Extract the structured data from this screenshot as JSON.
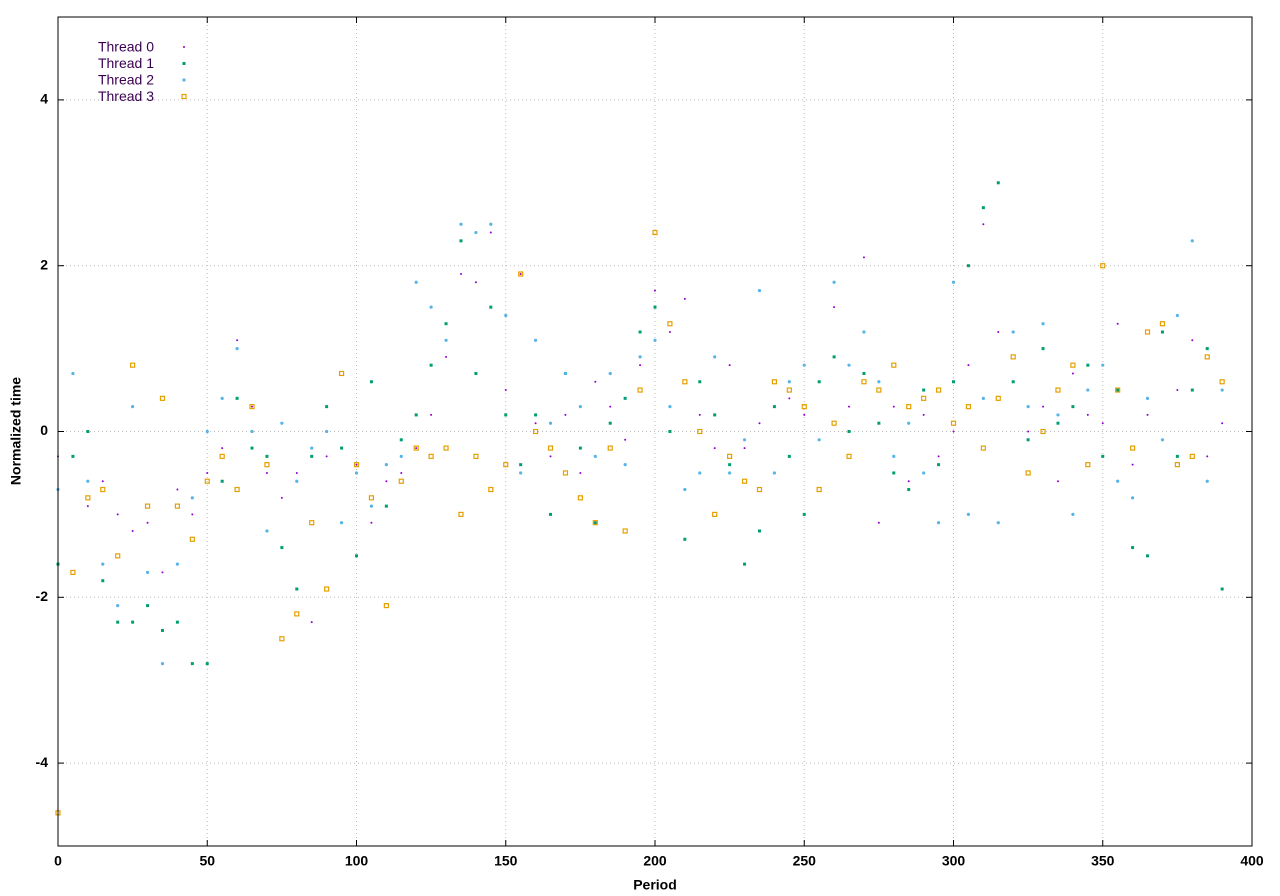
{
  "chart_data": {
    "type": "scatter",
    "xlabel": "Period",
    "ylabel": "Normalized time",
    "xlim": [
      0,
      400
    ],
    "ylim": [
      -5,
      5
    ],
    "xticks": [
      0,
      50,
      100,
      150,
      200,
      250,
      300,
      350,
      400
    ],
    "yticks": [
      -4,
      -2,
      0,
      2,
      4
    ],
    "grid": true,
    "legend": "top-left",
    "x": [
      0,
      5,
      10,
      15,
      20,
      25,
      30,
      35,
      40,
      45,
      50,
      55,
      60,
      65,
      70,
      75,
      80,
      85,
      90,
      95,
      100,
      105,
      110,
      115,
      120,
      125,
      130,
      135,
      140,
      145,
      150,
      155,
      160,
      165,
      170,
      175,
      180,
      185,
      190,
      195,
      200,
      205,
      210,
      215,
      220,
      225,
      230,
      235,
      240,
      245,
      250,
      255,
      260,
      265,
      270,
      275,
      280,
      285,
      290,
      295,
      300,
      305,
      310,
      315,
      320,
      325,
      330,
      335,
      340,
      345,
      350,
      355,
      360,
      365,
      370,
      375,
      380,
      385,
      390
    ],
    "series": [
      {
        "name": "Thread 0",
        "color": "#9400d3",
        "values": [
          -0.3,
          -0.3,
          -0.9,
          -0.6,
          -1.0,
          -1.2,
          -1.1,
          -1.7,
          -0.7,
          -1.0,
          -0.5,
          -0.2,
          1.1,
          0.3,
          -0.5,
          -0.8,
          -0.5,
          -2.3,
          -0.3,
          -0.2,
          -0.4,
          -1.1,
          -0.6,
          -0.5,
          -0.2,
          0.2,
          0.9,
          1.9,
          1.8,
          2.4,
          0.5,
          1.9,
          0.1,
          -0.3,
          0.2,
          -0.5,
          0.6,
          0.3,
          -0.1,
          0.8,
          1.7,
          1.2,
          1.6,
          0.2,
          -0.2,
          0.8,
          -0.2,
          0.1,
          -0.5,
          0.4,
          0.2,
          0.6,
          1.5,
          0.3,
          2.1,
          -1.1,
          0.3,
          -0.6,
          0.2,
          -0.3,
          0.0,
          0.8,
          2.5,
          1.2,
          0.6,
          0.0,
          0.3,
          -0.6,
          0.7,
          0.2,
          0.1,
          1.3,
          -0.4,
          0.2,
          -0.1,
          0.5,
          1.1,
          -0.3,
          0.1
        ]
      },
      {
        "name": "Thread 1",
        "color": "#009e73",
        "values": [
          -1.6,
          -0.3,
          0.0,
          -1.8,
          -2.3,
          -2.3,
          -2.1,
          -2.4,
          -2.3,
          -2.8,
          -2.8,
          -0.6,
          0.4,
          -0.2,
          -0.3,
          -1.4,
          -1.9,
          -0.3,
          0.3,
          -0.2,
          -1.5,
          0.6,
          -0.9,
          -0.1,
          0.2,
          0.8,
          1.3,
          2.3,
          0.7,
          1.5,
          0.2,
          -0.4,
          0.2,
          -1.0,
          0.7,
          -0.2,
          -1.1,
          0.1,
          0.4,
          1.2,
          1.5,
          0.0,
          -1.3,
          0.6,
          0.2,
          -0.4,
          -1.6,
          -1.2,
          0.3,
          -0.3,
          -1.0,
          0.6,
          0.9,
          0.0,
          0.7,
          0.1,
          -0.5,
          -0.7,
          0.5,
          -0.4,
          0.6,
          2.0,
          2.7,
          3.0,
          0.6,
          -0.1,
          1.0,
          0.1,
          0.3,
          0.8,
          -0.3,
          0.5,
          -1.4,
          -1.5,
          1.2,
          -0.3,
          0.5,
          1.0,
          -1.9
        ]
      },
      {
        "name": "Thread 2",
        "color": "#56b4e9",
        "values": [
          -0.7,
          0.7,
          -0.6,
          -1.6,
          -2.1,
          0.3,
          -1.7,
          -2.8,
          -1.6,
          -0.8,
          0.0,
          0.4,
          1.0,
          0.0,
          -1.2,
          0.1,
          -0.6,
          -0.2,
          0.0,
          -1.1,
          -0.5,
          -0.9,
          -0.4,
          -0.3,
          1.8,
          1.5,
          1.1,
          2.5,
          2.4,
          2.5,
          1.4,
          -0.5,
          1.1,
          0.1,
          0.7,
          0.3,
          -0.3,
          0.7,
          -0.4,
          0.9,
          1.1,
          0.3,
          -0.7,
          -0.5,
          0.9,
          -0.5,
          -0.1,
          1.7,
          -0.5,
          0.6,
          0.8,
          -0.1,
          1.8,
          0.8,
          1.2,
          0.6,
          -0.3,
          0.1,
          -0.5,
          -1.1,
          1.8,
          -1.0,
          0.4,
          -1.1,
          1.2,
          0.3,
          1.3,
          0.2,
          -1.0,
          0.5,
          0.8,
          -0.6,
          -0.8,
          0.4,
          -0.1,
          1.4,
          2.3,
          -0.6,
          0.5
        ]
      },
      {
        "name": "Thread 3",
        "color": "#e69f00",
        "values": [
          -4.6,
          -1.7,
          -0.8,
          -0.7,
          -1.5,
          0.8,
          -0.9,
          0.4,
          -0.9,
          -1.3,
          -0.6,
          -0.3,
          -0.7,
          0.3,
          -0.4,
          -2.5,
          -2.2,
          -1.1,
          -1.9,
          0.7,
          -0.4,
          -0.8,
          -2.1,
          -0.6,
          -0.2,
          -0.3,
          -0.2,
          -1.0,
          -0.3,
          -0.7,
          -0.4,
          1.9,
          0.0,
          -0.2,
          -0.5,
          -0.8,
          -1.1,
          -0.2,
          -1.2,
          0.5,
          2.4,
          1.3,
          0.6,
          0.0,
          -1.0,
          -0.3,
          -0.6,
          -0.7,
          0.6,
          0.5,
          0.3,
          -0.7,
          0.1,
          -0.3,
          0.6,
          0.5,
          0.8,
          0.3,
          0.4,
          0.5,
          0.1,
          0.3,
          -0.2,
          0.4,
          0.9,
          -0.5,
          0.0,
          0.5,
          0.8,
          -0.4,
          2.0,
          0.5,
          -0.2,
          1.2,
          1.3,
          -0.4,
          -0.3,
          0.9,
          0.6
        ]
      }
    ]
  }
}
